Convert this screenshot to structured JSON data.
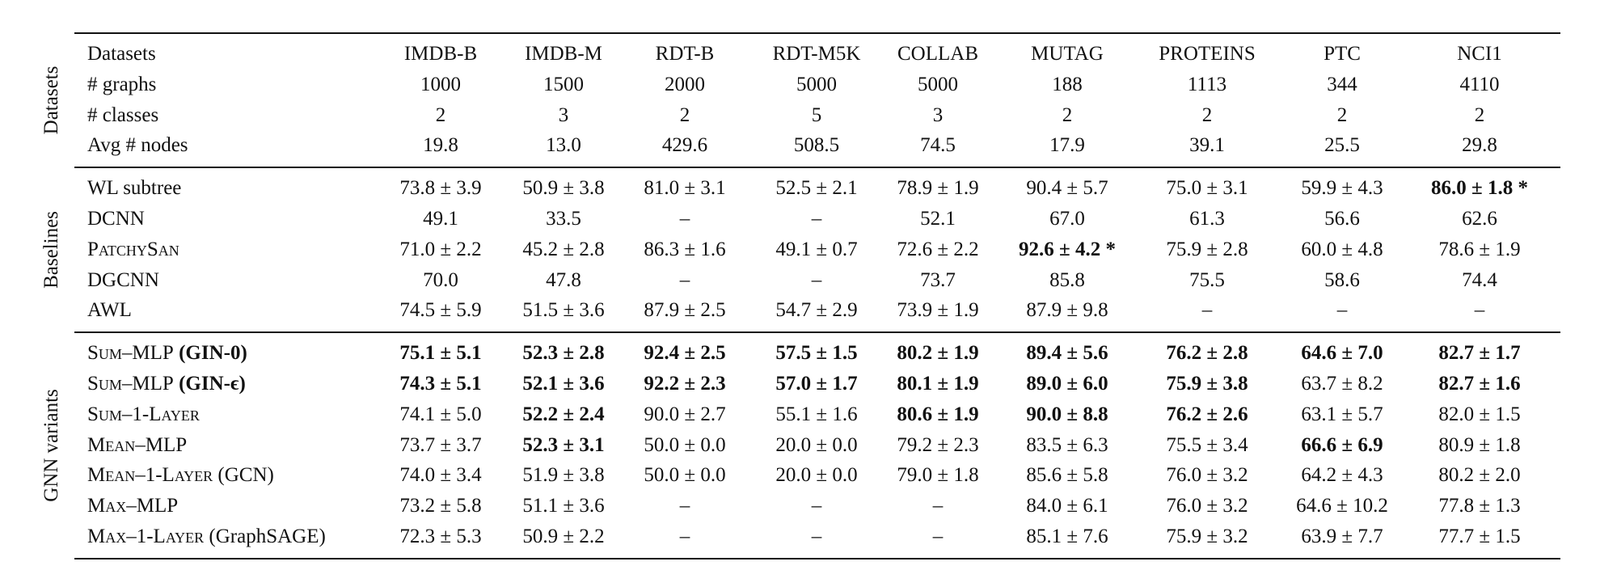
{
  "table": {
    "sections": [
      {
        "title": "Datasets",
        "rows": [
          {
            "label": "Datasets",
            "cells": [
              "IMDB-B",
              "IMDB-M",
              "RDT-B",
              "RDT-M5K",
              "COLLAB",
              "MUTAG",
              "PROTEINS",
              "PTC",
              "NCI1"
            ]
          },
          {
            "label": "# graphs",
            "cells": [
              "1000",
              "1500",
              "2000",
              "5000",
              "5000",
              "188",
              "1113",
              "344",
              "4110"
            ]
          },
          {
            "label": "# classes",
            "cells": [
              "2",
              "3",
              "2",
              "5",
              "3",
              "2",
              "2",
              "2",
              "2"
            ]
          },
          {
            "label": "Avg # nodes",
            "cells": [
              "19.8",
              "13.0",
              "429.6",
              "508.5",
              "74.5",
              "17.9",
              "39.1",
              "25.5",
              "29.8"
            ]
          }
        ]
      },
      {
        "title": "Baselines",
        "rows": [
          {
            "label": "WL subtree",
            "cells": [
              "73.8 ± 3.9",
              "50.9 ± 3.8",
              "81.0 ± 3.1",
              "52.5 ± 2.1",
              "78.9 ± 1.9",
              "90.4 ± 5.7",
              "75.0 ± 3.1",
              "59.9 ± 4.3",
              "86.0 ± 1.8 *"
            ],
            "bold": [
              false,
              false,
              false,
              false,
              false,
              false,
              false,
              false,
              true
            ]
          },
          {
            "label": "DCNN",
            "cells": [
              "49.1",
              "33.5",
              "–",
              "–",
              "52.1",
              "67.0",
              "61.3",
              "56.6",
              "62.6"
            ]
          },
          {
            "label": "PatchySan",
            "smallcaps": true,
            "cells": [
              "71.0 ± 2.2",
              "45.2 ± 2.8",
              "86.3 ± 1.6",
              "49.1 ± 0.7",
              "72.6 ± 2.2",
              "92.6 ± 4.2 *",
              "75.9 ± 2.8",
              "60.0 ± 4.8",
              "78.6 ± 1.9"
            ],
            "bold": [
              false,
              false,
              false,
              false,
              false,
              true,
              false,
              false,
              false
            ]
          },
          {
            "label": "DGCNN",
            "cells": [
              "70.0",
              "47.8",
              "–",
              "–",
              "73.7",
              "85.8",
              "75.5",
              "58.6",
              "74.4"
            ]
          },
          {
            "label": "AWL",
            "cells": [
              "74.5 ± 5.9",
              "51.5 ± 3.6",
              "87.9 ± 2.5",
              "54.7 ± 2.9",
              "73.9 ± 1.9",
              "87.9 ± 9.8",
              "–",
              "–",
              "–"
            ]
          }
        ]
      },
      {
        "title": "GNN variants",
        "rows": [
          {
            "label": "Sum–MLP",
            "smallcaps": true,
            "suffix": "(GIN-0)",
            "suffix_bold": true,
            "cells": [
              "75.1 ± 5.1",
              "52.3 ± 2.8",
              "92.4 ± 2.5",
              "57.5 ± 1.5",
              "80.2 ± 1.9",
              "89.4 ± 5.6",
              "76.2 ± 2.8",
              "64.6 ± 7.0",
              "82.7 ± 1.7"
            ],
            "bold": [
              true,
              true,
              true,
              true,
              true,
              true,
              true,
              true,
              true
            ]
          },
          {
            "label": "Sum–MLP",
            "smallcaps": true,
            "suffix": "(GIN-ϵ)",
            "suffix_bold": true,
            "cells": [
              "74.3 ± 5.1",
              "52.1 ± 3.6",
              "92.2 ± 2.3",
              "57.0 ± 1.7",
              "80.1 ± 1.9",
              "89.0 ± 6.0",
              "75.9 ± 3.8",
              "63.7 ± 8.2",
              "82.7 ± 1.6"
            ],
            "bold": [
              true,
              true,
              true,
              true,
              true,
              true,
              true,
              false,
              true
            ]
          },
          {
            "label": "Sum–1-Layer",
            "smallcaps": true,
            "cells": [
              "74.1 ± 5.0",
              "52.2 ± 2.4",
              "90.0 ± 2.7",
              "55.1 ± 1.6",
              "80.6 ± 1.9",
              "90.0 ± 8.8",
              "76.2 ± 2.6",
              "63.1 ± 5.7",
              "82.0 ± 1.5"
            ],
            "bold": [
              false,
              true,
              false,
              false,
              true,
              true,
              true,
              false,
              false
            ]
          },
          {
            "label": "Mean–MLP",
            "smallcaps": true,
            "cells": [
              "73.7 ± 3.7",
              "52.3 ± 3.1",
              "50.0 ± 0.0",
              "20.0 ± 0.0",
              "79.2 ± 2.3",
              "83.5 ± 6.3",
              "75.5 ± 3.4",
              "66.6 ± 6.9",
              "80.9 ± 1.8"
            ],
            "bold": [
              false,
              true,
              false,
              false,
              false,
              false,
              false,
              true,
              false
            ]
          },
          {
            "label": "Mean–1-Layer",
            "smallcaps": true,
            "suffix": "(GCN)",
            "cells": [
              "74.0 ± 3.4",
              "51.9 ± 3.8",
              "50.0 ± 0.0",
              "20.0 ± 0.0",
              "79.0 ± 1.8",
              "85.6 ± 5.8",
              "76.0 ± 3.2",
              "64.2 ± 4.3",
              "80.2 ± 2.0"
            ]
          },
          {
            "label": "Max–MLP",
            "smallcaps": true,
            "cells": [
              "73.2 ± 5.8",
              "51.1 ± 3.6",
              "–",
              "–",
              "–",
              "84.0 ± 6.1",
              "76.0 ± 3.2",
              "64.6 ± 10.2",
              "77.8 ± 1.3"
            ]
          },
          {
            "label": "Max–1-Layer",
            "smallcaps": true,
            "suffix": "(GraphSAGE)",
            "cells": [
              "72.3 ± 5.3",
              "50.9 ± 2.2",
              "–",
              "–",
              "–",
              "85.1 ± 7.6",
              "75.9 ± 3.2",
              "63.9 ± 7.7",
              "77.7 ± 1.5"
            ]
          }
        ]
      }
    ]
  }
}
